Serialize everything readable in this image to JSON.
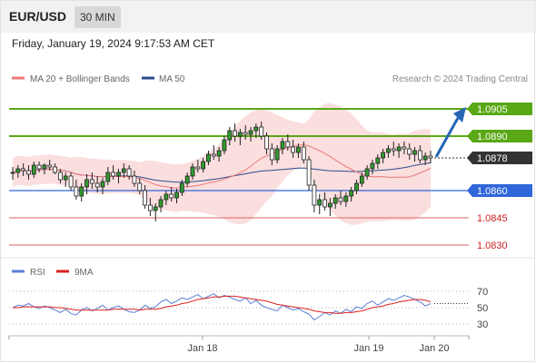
{
  "header": {
    "pair": "EUR/USD",
    "timeframe": "30 MIN"
  },
  "datetime": "Friday, January 19, 2024 9:17:53 AM CET",
  "legend": {
    "ma_bb": "MA 20 + Bollinger Bands",
    "ma50": "MA 50",
    "rsi": "RSI",
    "rsi_ma": "9MA"
  },
  "credit": "Research © 2024 Trading Central",
  "colors": {
    "ma_bb": "#e87a7a",
    "bands_fill": "#fbdede",
    "ma50": "#2b4a8a",
    "resistance": "#5aa815",
    "support": "#2f66d9",
    "levels": "#e26060",
    "current": "#333333",
    "arrow": "#2566b5",
    "candle_body": "#2f9a2f",
    "candle_wick": "#222222",
    "rsi": "#5b7fd6",
    "rsi_ma": "#dd2222"
  },
  "levels": {
    "r2": {
      "label": "1.0905",
      "value": 1.0905
    },
    "r1": {
      "label": "1.0890",
      "value": 1.089
    },
    "current": {
      "label": "1.0878",
      "value": 1.0878
    },
    "s1": {
      "label": "1.0860",
      "value": 1.086
    },
    "s2": {
      "label": "1.0845",
      "value": 1.0845
    },
    "s3": {
      "label": "1.0830",
      "value": 1.083
    }
  },
  "x_axis": {
    "ticks": [
      "Jan 18",
      "Jan 19",
      "Jan 20"
    ]
  },
  "rsi_axis": {
    "ticks": [
      "70",
      "50",
      "30"
    ]
  },
  "chart_data": [
    {
      "type": "candlestick",
      "title": "EUR/USD",
      "timeframe": "30 MIN",
      "x_ticks": [
        "Jan 18",
        "Jan 19",
        "Jan 20"
      ],
      "ylim": [
        1.0825,
        1.0915
      ],
      "candles": [
        [
          1.087,
          1.0873,
          1.0866,
          1.087
        ],
        [
          1.087,
          1.0874,
          1.0867,
          1.0872
        ],
        [
          1.0872,
          1.0875,
          1.0868,
          1.0871
        ],
        [
          1.0871,
          1.0874,
          1.0866,
          1.0869
        ],
        [
          1.0869,
          1.0876,
          1.0867,
          1.0874
        ],
        [
          1.0874,
          1.0876,
          1.087,
          1.0872
        ],
        [
          1.0872,
          1.0875,
          1.0869,
          1.0874
        ],
        [
          1.0874,
          1.0877,
          1.0871,
          1.0873
        ],
        [
          1.0873,
          1.0875,
          1.0869,
          1.087
        ],
        [
          1.087,
          1.0872,
          1.0864,
          1.0866
        ],
        [
          1.0866,
          1.087,
          1.0862,
          1.0868
        ],
        [
          1.0868,
          1.087,
          1.086,
          1.0862
        ],
        [
          1.0862,
          1.0866,
          1.0855,
          1.0857
        ],
        [
          1.0857,
          1.0864,
          1.0854,
          1.0862
        ],
        [
          1.0862,
          1.0869,
          1.0858,
          1.0866
        ],
        [
          1.0866,
          1.087,
          1.0861,
          1.0864
        ],
        [
          1.0864,
          1.0868,
          1.0859,
          1.0862
        ],
        [
          1.0862,
          1.0867,
          1.0858,
          1.0865
        ],
        [
          1.0865,
          1.0873,
          1.0863,
          1.087
        ],
        [
          1.087,
          1.0874,
          1.0866,
          1.0868
        ],
        [
          1.0868,
          1.0872,
          1.0864,
          1.087
        ],
        [
          1.087,
          1.0875,
          1.0867,
          1.0872
        ],
        [
          1.0872,
          1.0874,
          1.0866,
          1.0868
        ],
        [
          1.0868,
          1.0871,
          1.0862,
          1.0864
        ],
        [
          1.0864,
          1.0867,
          1.0858,
          1.086
        ],
        [
          1.086,
          1.0863,
          1.085,
          1.0852
        ],
        [
          1.0852,
          1.0856,
          1.0846,
          1.0849
        ],
        [
          1.0849,
          1.0853,
          1.0843,
          1.0851
        ],
        [
          1.0851,
          1.0857,
          1.0848,
          1.0855
        ],
        [
          1.0855,
          1.086,
          1.0852,
          1.0858
        ],
        [
          1.0858,
          1.0862,
          1.0854,
          1.0856
        ],
        [
          1.0856,
          1.0861,
          1.0853,
          1.0859
        ],
        [
          1.0859,
          1.0866,
          1.0857,
          1.0864
        ],
        [
          1.0864,
          1.087,
          1.0862,
          1.0868
        ],
        [
          1.0868,
          1.0875,
          1.0866,
          1.0873
        ],
        [
          1.0873,
          1.0877,
          1.087,
          1.0872
        ],
        [
          1.0872,
          1.0878,
          1.087,
          1.0876
        ],
        [
          1.0876,
          1.0882,
          1.0874,
          1.088
        ],
        [
          1.088,
          1.0885,
          1.0877,
          1.0879
        ],
        [
          1.0879,
          1.0884,
          1.0876,
          1.0882
        ],
        [
          1.0882,
          1.089,
          1.088,
          1.0888
        ],
        [
          1.0888,
          1.0895,
          1.0885,
          1.0893
        ],
        [
          1.0893,
          1.0897,
          1.0887,
          1.089
        ],
        [
          1.089,
          1.0894,
          1.0885,
          1.0892
        ],
        [
          1.0892,
          1.0896,
          1.0888,
          1.0891
        ],
        [
          1.0891,
          1.0895,
          1.0887,
          1.0893
        ],
        [
          1.0893,
          1.0897,
          1.0889,
          1.0895
        ],
        [
          1.0895,
          1.0898,
          1.0888,
          1.089
        ],
        [
          1.089,
          1.0892,
          1.088,
          1.0883
        ],
        [
          1.0883,
          1.0886,
          1.0874,
          1.0877
        ],
        [
          1.0877,
          1.0885,
          1.0875,
          1.0883
        ],
        [
          1.0883,
          1.0889,
          1.088,
          1.0887
        ],
        [
          1.0887,
          1.0891,
          1.0882,
          1.0884
        ],
        [
          1.0884,
          1.0888,
          1.0878,
          1.0881
        ],
        [
          1.0881,
          1.0886,
          1.0878,
          1.0884
        ],
        [
          1.0884,
          1.0887,
          1.0875,
          1.0877
        ],
        [
          1.0877,
          1.0879,
          1.086,
          1.0863
        ],
        [
          1.0863,
          1.0866,
          1.0848,
          1.0852
        ],
        [
          1.0852,
          1.0858,
          1.0847,
          1.0855
        ],
        [
          1.0855,
          1.0859,
          1.0849,
          1.0851
        ],
        [
          1.0851,
          1.0856,
          1.0846,
          1.0853
        ],
        [
          1.0853,
          1.0858,
          1.085,
          1.0856
        ],
        [
          1.0856,
          1.086,
          1.0852,
          1.0854
        ],
        [
          1.0854,
          1.0859,
          1.0851,
          1.0857
        ],
        [
          1.0857,
          1.0862,
          1.0854,
          1.086
        ],
        [
          1.086,
          1.0866,
          1.0858,
          1.0864
        ],
        [
          1.0864,
          1.087,
          1.0862,
          1.0868
        ],
        [
          1.0868,
          1.0874,
          1.0866,
          1.0872
        ],
        [
          1.0872,
          1.0877,
          1.0869,
          1.0875
        ],
        [
          1.0875,
          1.088,
          1.0872,
          1.0878
        ],
        [
          1.0878,
          1.0883,
          1.0875,
          1.0881
        ],
        [
          1.0881,
          1.0885,
          1.0878,
          1.0883
        ],
        [
          1.0883,
          1.0887,
          1.0879,
          1.0882
        ],
        [
          1.0882,
          1.0886,
          1.0878,
          1.0884
        ],
        [
          1.0884,
          1.0887,
          1.088,
          1.0883
        ],
        [
          1.0883,
          1.0886,
          1.0877,
          1.088
        ],
        [
          1.088,
          1.0884,
          1.0876,
          1.0882
        ],
        [
          1.0882,
          1.0885,
          1.0875,
          1.0877
        ],
        [
          1.0877,
          1.0881,
          1.0874,
          1.0879
        ],
        [
          1.0879,
          1.0882,
          1.0875,
          1.0878
        ]
      ],
      "series": [
        {
          "name": "MA 20 + Bollinger Bands"
        },
        {
          "name": "MA 50"
        }
      ],
      "annotations": [
        "1.0905",
        "1.0890",
        "1.0878",
        "1.0860",
        "1.0845",
        "1.0830"
      ]
    },
    {
      "type": "line",
      "x_ticks": [
        "Jan 18",
        "Jan 19",
        "Jan 20"
      ],
      "ylim": [
        20,
        80
      ],
      "y_ticks": [
        70,
        50,
        30
      ],
      "series": [
        {
          "name": "RSI",
          "values": [
            50,
            53,
            52,
            55,
            51,
            49,
            52,
            50,
            47,
            44,
            48,
            43,
            41,
            47,
            50,
            46,
            49,
            53,
            47,
            50,
            52,
            48,
            45,
            44,
            47,
            53,
            49,
            51,
            57,
            60,
            55,
            58,
            62,
            60,
            63,
            66,
            61,
            64,
            67,
            62,
            65,
            63,
            60,
            58,
            62,
            55,
            59,
            53,
            50,
            48,
            46,
            53,
            50,
            47,
            49,
            45,
            42,
            35,
            39,
            44,
            41,
            46,
            43,
            48,
            45,
            51,
            49,
            55,
            58,
            53,
            57,
            61,
            59,
            62,
            65,
            63,
            60,
            57,
            52,
            55
          ]
        },
        {
          "name": "9MA",
          "values": [
            50,
            50,
            51,
            51,
            51,
            51,
            51,
            51,
            50,
            50,
            49,
            48,
            47,
            47,
            47,
            47,
            47,
            47,
            47,
            48,
            48,
            48,
            48,
            48,
            47,
            48,
            48,
            48,
            49,
            51,
            52,
            53,
            55,
            56,
            58,
            60,
            61,
            62,
            63,
            63,
            64,
            64,
            64,
            63,
            62,
            61,
            60,
            59,
            58,
            56,
            54,
            53,
            52,
            51,
            50,
            49,
            48,
            46,
            45,
            44,
            44,
            43,
            43,
            44,
            44,
            45,
            46,
            48,
            50,
            51,
            52,
            54,
            55,
            57,
            58,
            59,
            60,
            60,
            59,
            57
          ]
        }
      ]
    }
  ]
}
